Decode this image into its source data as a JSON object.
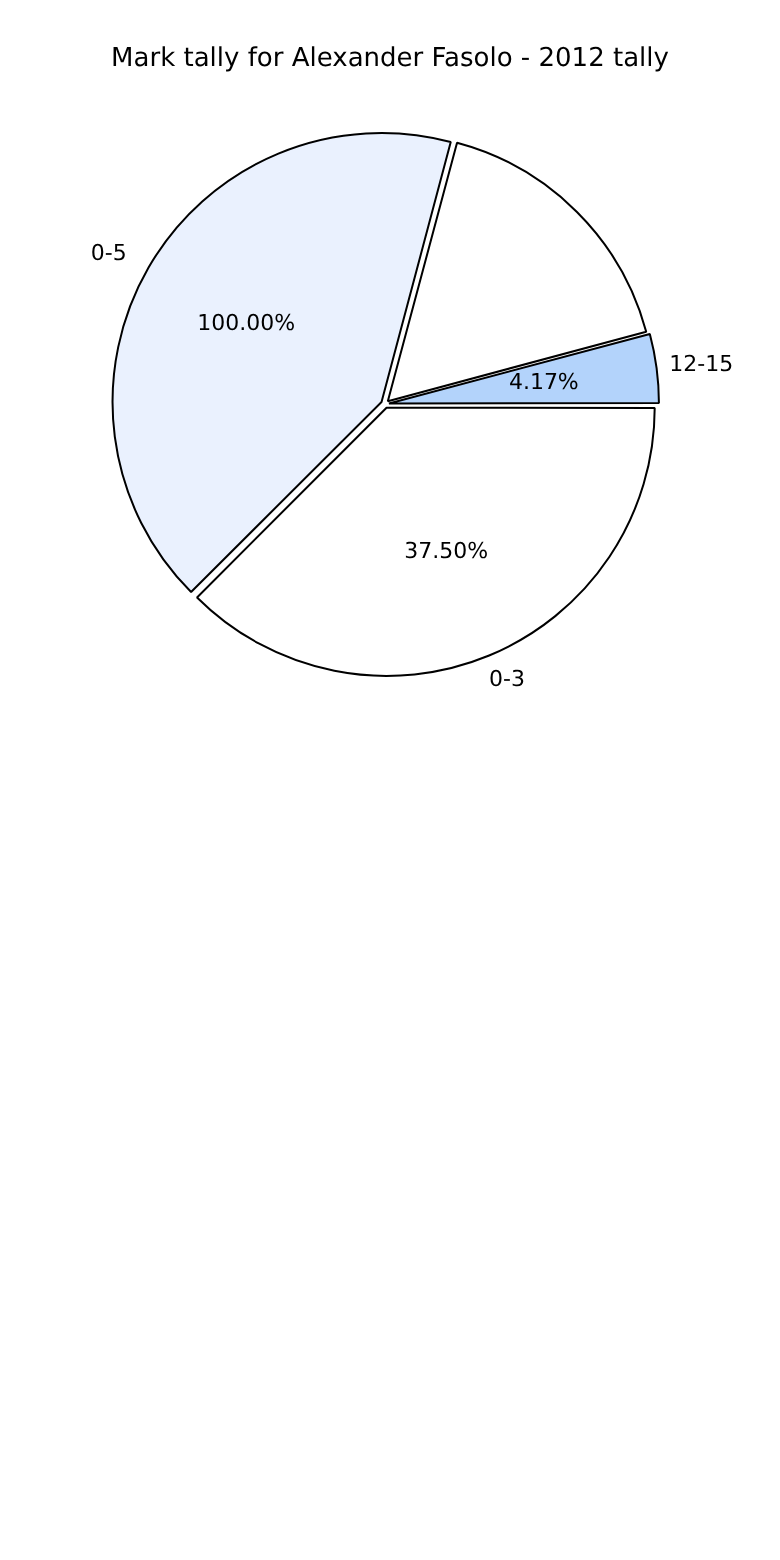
{
  "chart_data": {
    "type": "pie",
    "title": "Mark tally for Alexander Fasolo - 2012 tally",
    "categories": [
      "0-3",
      "0-5",
      null,
      "12-15"
    ],
    "values": [
      37.5,
      41.66,
      16.67,
      4.17
    ],
    "colors": [
      "#ffffff",
      "#eaf1fe",
      "#ffffff",
      "#b3d3fb"
    ],
    "value_labels": [
      "37.50%",
      null,
      null,
      "4.17%"
    ],
    "annotations": [
      {
        "text": "100.00%",
        "x": "0-5"
      }
    ],
    "legend": false
  }
}
